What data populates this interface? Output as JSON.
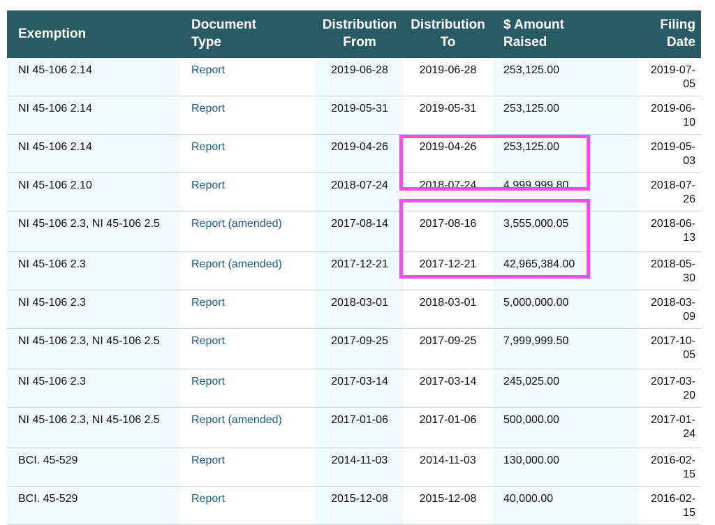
{
  "columns": {
    "exemption": "Exemption",
    "doc_type_1": "Document",
    "doc_type_2": "Type",
    "dist_from_1": "Distribution",
    "dist_from_2": "From",
    "dist_to_1": "Distribution",
    "dist_to_2": "To",
    "amount_1": "$ Amount",
    "amount_2": "Raised",
    "filing_1": "Filing",
    "filing_2": "Date"
  },
  "rows": [
    {
      "exemption": "NI 45-106 2.14",
      "doc_type": "Report",
      "from": "2019-06-28",
      "to": "2019-06-28",
      "amount": "253,125.00",
      "filing": "2019-07-05"
    },
    {
      "exemption": "NI 45-106 2.14",
      "doc_type": "Report",
      "from": "2019-05-31",
      "to": "2019-05-31",
      "amount": "253,125.00",
      "filing": "2019-06-10"
    },
    {
      "exemption": "NI 45-106 2.14",
      "doc_type": "Report",
      "from": "2019-04-26",
      "to": "2019-04-26",
      "amount": "253,125.00",
      "filing": "2019-05-03"
    },
    {
      "exemption": "NI 45-106 2.10",
      "doc_type": "Report",
      "from": "2018-07-24",
      "to": "2018-07-24",
      "amount": "4,999,999.80",
      "filing": "2018-07-26"
    },
    {
      "exemption": "NI 45-106 2.3, NI 45-106 2.5",
      "doc_type": "Report (amended)",
      "from": "2017-08-14",
      "to": "2017-08-16",
      "amount": "3,555,000.05",
      "filing": "2018-06-13"
    },
    {
      "exemption": "NI 45-106 2.3",
      "doc_type": "Report (amended)",
      "from": "2017-12-21",
      "to": "2017-12-21",
      "amount": "42,965,384.00",
      "filing": "2018-05-30"
    },
    {
      "exemption": "NI 45-106 2.3",
      "doc_type": "Report",
      "from": "2018-03-01",
      "to": "2018-03-01",
      "amount": "5,000,000.00",
      "filing": "2018-03-09"
    },
    {
      "exemption": "NI 45-106 2.3, NI 45-106 2.5",
      "doc_type": "Report",
      "from": "2017-09-25",
      "to": "2017-09-25",
      "amount": "7,999,999.50",
      "filing": "2017-10-05"
    },
    {
      "exemption": "NI 45-106 2.3",
      "doc_type": "Report",
      "from": "2017-03-14",
      "to": "2017-03-14",
      "amount": "245,025.00",
      "filing": "2017-03-20"
    },
    {
      "exemption": "NI 45-106 2.3, NI 45-106 2.5",
      "doc_type": "Report (amended)",
      "from": "2017-01-06",
      "to": "2017-01-06",
      "amount": "500,000.00",
      "filing": "2017-01-24"
    },
    {
      "exemption": "BCI. 45-529",
      "doc_type": "Report",
      "from": "2014-11-03",
      "to": "2014-11-03",
      "amount": "130,000.00",
      "filing": "2016-02-15"
    },
    {
      "exemption": "BCI. 45-529",
      "doc_type": "Report",
      "from": "2015-12-08",
      "to": "2015-12-08",
      "amount": "40,000.00",
      "filing": "2016-02-15"
    }
  ],
  "colors": {
    "header_bg": "#2a5a66",
    "link": "#1d5a8c",
    "highlight": "#f24ee8",
    "stripe": "#f1fbfd"
  }
}
